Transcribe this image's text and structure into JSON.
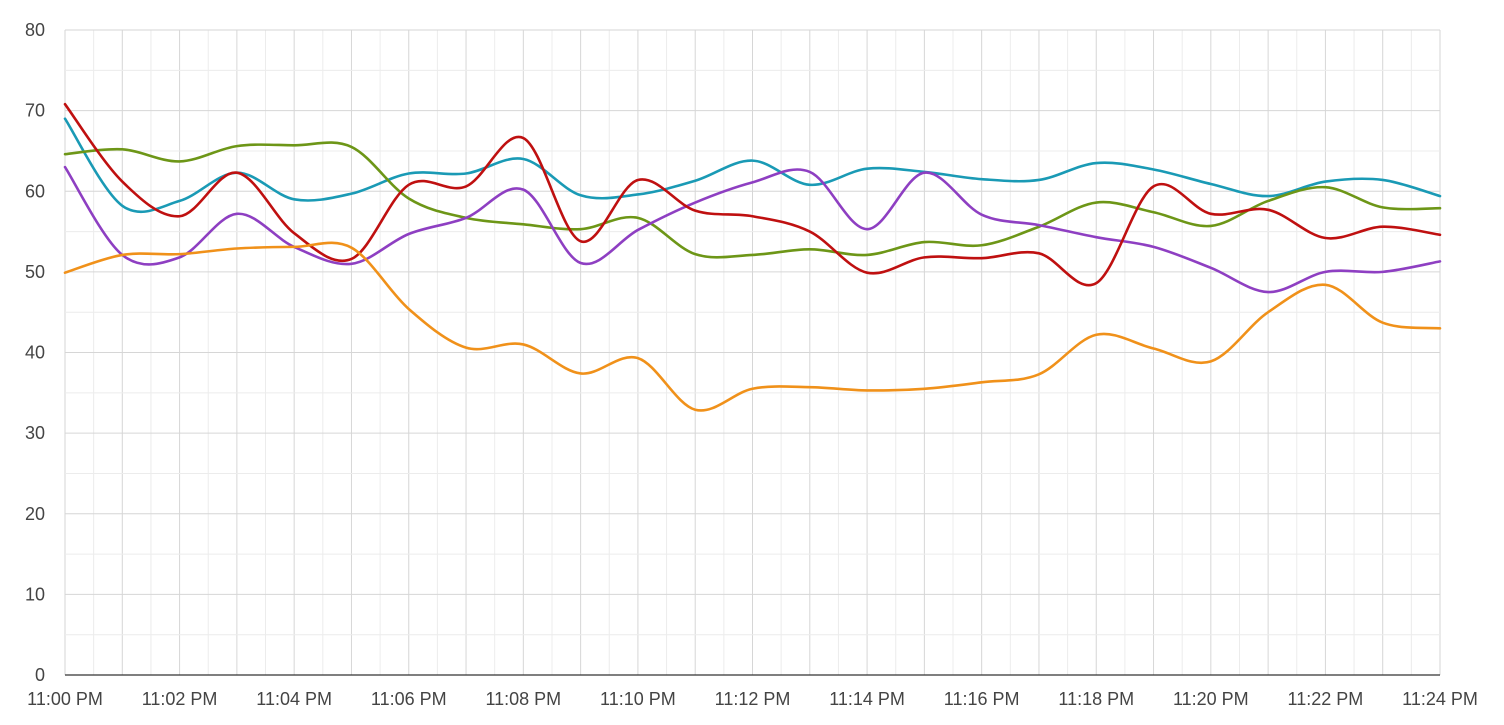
{
  "chart_data": {
    "type": "line",
    "title": "",
    "xlabel": "",
    "ylabel": "",
    "x": [
      "11:00 PM",
      "11:01 PM",
      "11:02 PM",
      "11:03 PM",
      "11:04 PM",
      "11:05 PM",
      "11:06 PM",
      "11:07 PM",
      "11:08 PM",
      "11:09 PM",
      "11:10 PM",
      "11:11 PM",
      "11:12 PM",
      "11:13 PM",
      "11:14 PM",
      "11:15 PM",
      "11:16 PM",
      "11:17 PM",
      "11:18 PM",
      "11:19 PM",
      "11:20 PM",
      "11:21 PM",
      "11:22 PM",
      "11:23 PM",
      "11:24 PM"
    ],
    "x_tick_labels": [
      "11:00 PM",
      "11:02 PM",
      "11:04 PM",
      "11:06 PM",
      "11:08 PM",
      "11:10 PM",
      "11:12 PM",
      "11:14 PM",
      "11:16 PM",
      "11:18 PM",
      "11:20 PM",
      "11:22 PM",
      "11:24 PM"
    ],
    "y_ticks": [
      0,
      10,
      20,
      30,
      40,
      50,
      60,
      70,
      80
    ],
    "ylim": [
      0,
      80
    ],
    "grid": true,
    "legend": "none",
    "series": [
      {
        "color": "#1a9ab5",
        "values": [
          69,
          58.2,
          58.8,
          62.3,
          59,
          59.7,
          62.2,
          62.2,
          64,
          59.5,
          59.6,
          61.3,
          63.8,
          60.8,
          62.8,
          62.4,
          61.5,
          61.4,
          63.5,
          62.7,
          60.9,
          59.4,
          61.2,
          61.4,
          59.4
        ]
      },
      {
        "color": "#6d9617",
        "values": [
          64.6,
          65.2,
          63.7,
          65.6,
          65.7,
          65.5,
          59.1,
          56.7,
          55.9,
          55.3,
          56.7,
          52.2,
          52.1,
          52.8,
          52.1,
          53.7,
          53.3,
          55.6,
          58.6,
          57.4,
          55.7,
          58.8,
          60.5,
          58.0,
          57.9
        ]
      },
      {
        "color": "#bf1010",
        "values": [
          70.8,
          61.2,
          56.9,
          62.3,
          54.8,
          51.6,
          60.8,
          60.6,
          66.6,
          53.8,
          61.4,
          57.6,
          56.9,
          55.0,
          49.9,
          51.8,
          51.7,
          52.3,
          48.6,
          60.6,
          57.2,
          57.7,
          54.2,
          55.6,
          54.6
        ]
      },
      {
        "color": "#8e3fc2",
        "values": [
          63,
          52.1,
          51.8,
          57.2,
          53.1,
          51.0,
          54.7,
          56.7,
          60.2,
          51.1,
          55.2,
          58.6,
          61.1,
          62.4,
          55.3,
          62.3,
          57.1,
          55.8,
          54.3,
          53.1,
          50.5,
          47.5,
          50.0,
          50.0,
          51.3
        ]
      },
      {
        "color": "#f0911a",
        "values": [
          49.9,
          52.1,
          52.2,
          52.9,
          53.1,
          53.0,
          45.4,
          40.6,
          41.0,
          37.4,
          39.3,
          32.9,
          35.5,
          35.7,
          35.3,
          35.5,
          36.3,
          37.3,
          42.2,
          40.5,
          38.9,
          45.0,
          48.4,
          43.7,
          43.0
        ]
      }
    ]
  }
}
